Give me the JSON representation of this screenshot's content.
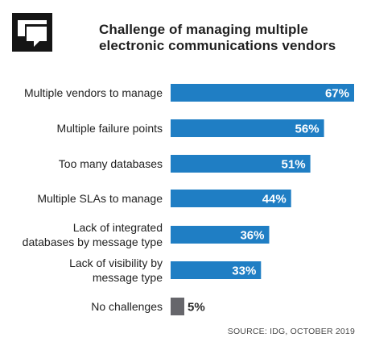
{
  "header": {
    "title_line1": "Challenge of managing multiple",
    "title_line2": "electronic communications vendors"
  },
  "source": "SOURCE: IDG, OCTOBER 2019",
  "colors": {
    "bar": "#1f7ec4",
    "bar_muted": "#66666b",
    "label": "#222222",
    "value_in_bar": "#ffffff",
    "value_out_bar": "#2b2b2b"
  },
  "logo_icon": "speech-bubbles-icon",
  "chart_data": {
    "type": "bar",
    "orientation": "horizontal",
    "title": "Challenge of managing multiple electronic communications vendors",
    "categories": [
      [
        "Multiple vendors to manage"
      ],
      [
        "Multiple failure points"
      ],
      [
        "Too many databases"
      ],
      [
        "Multiple SLAs to manage"
      ],
      [
        "Lack of integrated",
        "databases by message type"
      ],
      [
        "Lack of visibility by",
        "message type"
      ],
      [
        "No challenges"
      ]
    ],
    "values": [
      67,
      56,
      51,
      44,
      36,
      33,
      5
    ],
    "value_labels": [
      "67%",
      "56%",
      "51%",
      "44%",
      "36%",
      "33%",
      "5%"
    ],
    "unit": "%",
    "xlim": [
      0,
      100
    ],
    "grid": false,
    "legend": "none",
    "highlight_muted_index": 6
  }
}
